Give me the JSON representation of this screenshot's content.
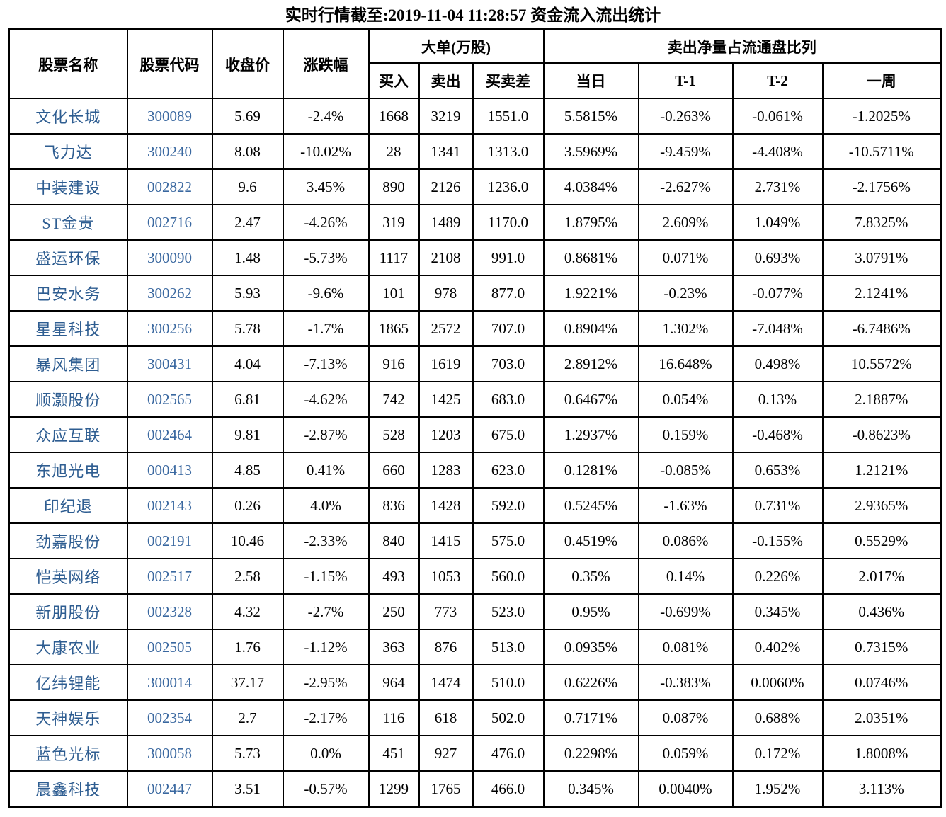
{
  "title": "实时行情截至:2019-11-04 11:28:57 资金流入流出统计",
  "headers": {
    "stock_name": "股票名称",
    "stock_code": "股票代码",
    "close_price": "收盘价",
    "change_pct": "涨跌幅",
    "large_order_group": "大单(万股)",
    "buy": "买入",
    "sell": "卖出",
    "buy_sell_diff": "买卖差",
    "net_sell_group": "卖出净量占流通盘比列",
    "day": "当日",
    "t1": "T-1",
    "t2": "T-2",
    "week": "一周"
  },
  "chart_data": {
    "type": "table",
    "title": "实时行情截至:2019-11-04 11:28:57 资金流入流出统计",
    "column_groups": [
      {
        "label": "大单(万股)",
        "columns": [
          "买入",
          "卖出",
          "买卖差"
        ]
      },
      {
        "label": "卖出净量占流通盘比列",
        "columns": [
          "当日",
          "T-1",
          "T-2",
          "一周"
        ]
      }
    ],
    "columns": [
      "股票名称",
      "股票代码",
      "收盘价",
      "涨跌幅",
      "买入",
      "卖出",
      "买卖差",
      "当日",
      "T-1",
      "T-2",
      "一周"
    ],
    "rows": [
      [
        "文化长城",
        "300089",
        "5.69",
        "-2.4%",
        "1668",
        "3219",
        "1551.0",
        "5.5815%",
        "-0.263%",
        "-0.061%",
        "-1.2025%"
      ],
      [
        "飞力达",
        "300240",
        "8.08",
        "-10.02%",
        "28",
        "1341",
        "1313.0",
        "3.5969%",
        "-9.459%",
        "-4.408%",
        "-10.5711%"
      ],
      [
        "中装建设",
        "002822",
        "9.6",
        "3.45%",
        "890",
        "2126",
        "1236.0",
        "4.0384%",
        "-2.627%",
        "2.731%",
        "-2.1756%"
      ],
      [
        "ST金贵",
        "002716",
        "2.47",
        "-4.26%",
        "319",
        "1489",
        "1170.0",
        "1.8795%",
        "2.609%",
        "1.049%",
        "7.8325%"
      ],
      [
        "盛运环保",
        "300090",
        "1.48",
        "-5.73%",
        "1117",
        "2108",
        "991.0",
        "0.8681%",
        "0.071%",
        "0.693%",
        "3.0791%"
      ],
      [
        "巴安水务",
        "300262",
        "5.93",
        "-9.6%",
        "101",
        "978",
        "877.0",
        "1.9221%",
        "-0.23%",
        "-0.077%",
        "2.1241%"
      ],
      [
        "星星科技",
        "300256",
        "5.78",
        "-1.7%",
        "1865",
        "2572",
        "707.0",
        "0.8904%",
        "1.302%",
        "-7.048%",
        "-6.7486%"
      ],
      [
        "暴风集团",
        "300431",
        "4.04",
        "-7.13%",
        "916",
        "1619",
        "703.0",
        "2.8912%",
        "16.648%",
        "0.498%",
        "10.5572%"
      ],
      [
        "顺灏股份",
        "002565",
        "6.81",
        "-4.62%",
        "742",
        "1425",
        "683.0",
        "0.6467%",
        "0.054%",
        "0.13%",
        "2.1887%"
      ],
      [
        "众应互联",
        "002464",
        "9.81",
        "-2.87%",
        "528",
        "1203",
        "675.0",
        "1.2937%",
        "0.159%",
        "-0.468%",
        "-0.8623%"
      ],
      [
        "东旭光电",
        "000413",
        "4.85",
        "0.41%",
        "660",
        "1283",
        "623.0",
        "0.1281%",
        "-0.085%",
        "0.653%",
        "1.2121%"
      ],
      [
        "印纪退",
        "002143",
        "0.26",
        "4.0%",
        "836",
        "1428",
        "592.0",
        "0.5245%",
        "-1.63%",
        "0.731%",
        "2.9365%"
      ],
      [
        "劲嘉股份",
        "002191",
        "10.46",
        "-2.33%",
        "840",
        "1415",
        "575.0",
        "0.4519%",
        "0.086%",
        "-0.155%",
        "0.5529%"
      ],
      [
        "恺英网络",
        "002517",
        "2.58",
        "-1.15%",
        "493",
        "1053",
        "560.0",
        "0.35%",
        "0.14%",
        "0.226%",
        "2.017%"
      ],
      [
        "新朋股份",
        "002328",
        "4.32",
        "-2.7%",
        "250",
        "773",
        "523.0",
        "0.95%",
        "-0.699%",
        "0.345%",
        "0.436%"
      ],
      [
        "大康农业",
        "002505",
        "1.76",
        "-1.12%",
        "363",
        "876",
        "513.0",
        "0.0935%",
        "0.081%",
        "0.402%",
        "0.7315%"
      ],
      [
        "亿纬锂能",
        "300014",
        "37.17",
        "-2.95%",
        "964",
        "1474",
        "510.0",
        "0.6226%",
        "-0.383%",
        "0.0060%",
        "0.0746%"
      ],
      [
        "天神娱乐",
        "002354",
        "2.7",
        "-2.17%",
        "116",
        "618",
        "502.0",
        "0.7171%",
        "0.087%",
        "0.688%",
        "2.0351%"
      ],
      [
        "蓝色光标",
        "300058",
        "5.73",
        "0.0%",
        "451",
        "927",
        "476.0",
        "0.2298%",
        "0.059%",
        "0.172%",
        "1.8008%"
      ],
      [
        "晨鑫科技",
        "002447",
        "3.51",
        "-0.57%",
        "1299",
        "1765",
        "466.0",
        "0.345%",
        "0.0040%",
        "1.952%",
        "3.113%"
      ]
    ]
  },
  "colors": {
    "stock_name_text": "#2e5d91",
    "stock_code_text": "#3a68a0",
    "body_text": "#000000",
    "border": "#000000",
    "page_background": "#ffffff"
  }
}
